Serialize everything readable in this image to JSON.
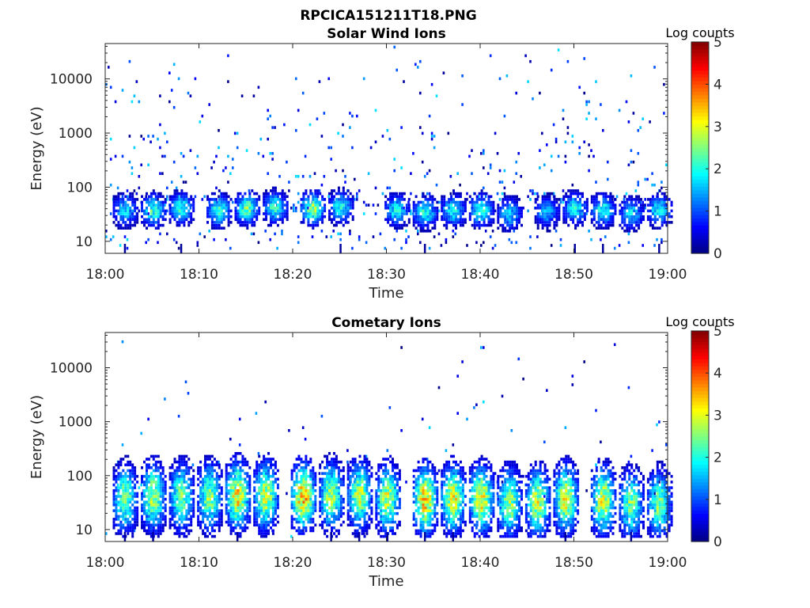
{
  "figure_title": "RPCICA151211T18.PNG",
  "chart_data": [
    {
      "type": "heatmap",
      "title": "Solar Wind Ions",
      "xlabel": "Time",
      "ylabel": "Energy (eV)",
      "x_ticks": [
        "18:00",
        "18:10",
        "18:20",
        "18:30",
        "18:40",
        "18:50",
        "19:00"
      ],
      "x_range": [
        "18:00",
        "19:00"
      ],
      "y_ticks": [
        10,
        100,
        1000,
        10000
      ],
      "y_ticklabels": [
        "10",
        "100",
        "1000",
        "10000"
      ],
      "y_scale": "log",
      "y_range": [
        6,
        45000
      ],
      "colorbar": {
        "label": "Log counts",
        "ticks": [
          0,
          1,
          2,
          3,
          4,
          5
        ],
        "range": [
          0,
          5
        ],
        "colormap": "jet"
      },
      "bursts": [
        {
          "t": "18:02",
          "energy_ev": 35,
          "log_counts": 1.8
        },
        {
          "t": "18:05",
          "energy_ev": 35,
          "log_counts": 2.3
        },
        {
          "t": "18:08",
          "energy_ev": 38,
          "log_counts": 2.1
        },
        {
          "t": "18:12",
          "energy_ev": 35,
          "log_counts": 2.2
        },
        {
          "t": "18:15",
          "energy_ev": 38,
          "log_counts": 2.5
        },
        {
          "t": "18:18",
          "energy_ev": 40,
          "log_counts": 2.2
        },
        {
          "t": "18:22",
          "energy_ev": 38,
          "log_counts": 2.8
        },
        {
          "t": "18:25",
          "energy_ev": 40,
          "log_counts": 2.1
        },
        {
          "t": "18:31",
          "energy_ev": 35,
          "log_counts": 2.0
        },
        {
          "t": "18:34",
          "energy_ev": 32,
          "log_counts": 2.1
        },
        {
          "t": "18:37",
          "energy_ev": 35,
          "log_counts": 2.0
        },
        {
          "t": "18:40",
          "energy_ev": 35,
          "log_counts": 2.2
        },
        {
          "t": "18:43",
          "energy_ev": 30,
          "log_counts": 1.8
        },
        {
          "t": "18:47",
          "energy_ev": 33,
          "log_counts": 1.6
        },
        {
          "t": "18:50",
          "energy_ev": 38,
          "log_counts": 2.0
        },
        {
          "t": "18:53",
          "energy_ev": 35,
          "log_counts": 2.1
        },
        {
          "t": "18:56",
          "energy_ev": 30,
          "log_counts": 1.8
        },
        {
          "t": "18:59",
          "energy_ev": 35,
          "log_counts": 2.0
        }
      ]
    },
    {
      "type": "heatmap",
      "title": "Cometary Ions",
      "xlabel": "Time",
      "ylabel": "Energy (eV)",
      "x_ticks": [
        "18:00",
        "18:10",
        "18:20",
        "18:30",
        "18:40",
        "18:50",
        "19:00"
      ],
      "x_range": [
        "18:00",
        "19:00"
      ],
      "y_ticks": [
        10,
        100,
        1000,
        10000
      ],
      "y_ticklabels": [
        "10",
        "100",
        "1000",
        "10000"
      ],
      "y_scale": "log",
      "y_range": [
        6,
        45000
      ],
      "colorbar": {
        "label": "Log counts",
        "ticks": [
          0,
          1,
          2,
          3,
          4,
          5
        ],
        "range": [
          0,
          5
        ],
        "colormap": "jet"
      },
      "bursts": [
        {
          "t": "18:02",
          "energy_ev": 35,
          "log_counts": 2.6
        },
        {
          "t": "18:05",
          "energy_ev": 38,
          "log_counts": 2.9
        },
        {
          "t": "18:08",
          "energy_ev": 38,
          "log_counts": 2.6
        },
        {
          "t": "18:11",
          "energy_ev": 38,
          "log_counts": 2.7
        },
        {
          "t": "18:14",
          "energy_ev": 40,
          "log_counts": 3.4
        },
        {
          "t": "18:17",
          "energy_ev": 40,
          "log_counts": 3.0
        },
        {
          "t": "18:21",
          "energy_ev": 38,
          "log_counts": 3.6
        },
        {
          "t": "18:24",
          "energy_ev": 40,
          "log_counts": 2.8
        },
        {
          "t": "18:27",
          "energy_ev": 40,
          "log_counts": 2.9
        },
        {
          "t": "18:30",
          "energy_ev": 35,
          "log_counts": 3.0
        },
        {
          "t": "18:34",
          "energy_ev": 33,
          "log_counts": 3.5
        },
        {
          "t": "18:37",
          "energy_ev": 35,
          "log_counts": 3.2
        },
        {
          "t": "18:40",
          "energy_ev": 35,
          "log_counts": 3.3
        },
        {
          "t": "18:43",
          "energy_ev": 30,
          "log_counts": 2.8
        },
        {
          "t": "18:46",
          "energy_ev": 30,
          "log_counts": 3.0
        },
        {
          "t": "18:49",
          "energy_ev": 35,
          "log_counts": 3.1
        },
        {
          "t": "18:53",
          "energy_ev": 33,
          "log_counts": 3.1
        },
        {
          "t": "18:56",
          "energy_ev": 28,
          "log_counts": 2.6
        },
        {
          "t": "18:59",
          "energy_ev": 28,
          "log_counts": 2.6
        }
      ]
    }
  ]
}
